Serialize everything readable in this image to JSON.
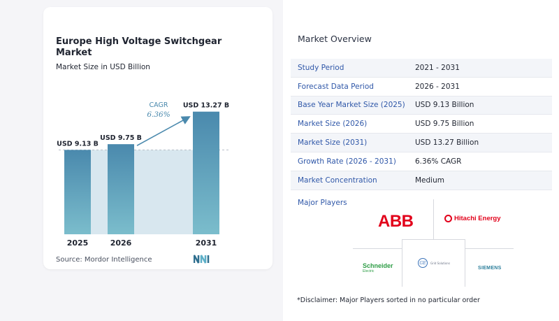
{
  "chart_data": {
    "type": "bar",
    "title": "Europe High Voltage Switchgear Market",
    "subtitle": "Market Size in USD Billion",
    "categories": [
      "2025",
      "2026",
      "2031"
    ],
    "values": [
      9.13,
      9.75,
      13.27
    ],
    "data_labels": [
      "USD 9.13 B",
      "USD 9.75 B",
      "USD 13.27 B"
    ],
    "cagr_label": "CAGR",
    "cagr_value": "6.36%",
    "ylim": [
      0,
      14
    ],
    "grid": false,
    "colors": {
      "bar_top": "#4a89ad",
      "bar_bottom": "#7bbdcc",
      "band": "#d8e7ef",
      "arrow": "#4a89ad",
      "cagr_text": "#4a89ad"
    }
  },
  "source": "Source:  Mordor Intelligence",
  "brand_icon": "mordor-intelligence-logo",
  "overview": {
    "title": "Market Overview",
    "rows": [
      {
        "key": "Study Period",
        "value": "2021 - 2031"
      },
      {
        "key": "Forecast Data Period",
        "value": "2026 - 2031"
      },
      {
        "key": "Base Year Market Size (2025)",
        "value": "USD 9.13 Billion"
      },
      {
        "key": "Market Size (2026)",
        "value": "USD 9.75 Billion"
      },
      {
        "key": "Market Size (2031)",
        "value": "USD 13.27 Billion"
      },
      {
        "key": "Growth Rate (2026 - 2031)",
        "value": "6.36% CAGR"
      },
      {
        "key": "Market Concentration",
        "value": "Medium"
      }
    ]
  },
  "players": {
    "title": "Major Players",
    "abb": "ABB",
    "hitachi": "Hitachi Energy",
    "schneider": "Schneider",
    "schneider_sub": "Electric",
    "ge_mark": "GE",
    "ge_text": "Grid Solutions",
    "siemens": "SIEMENS"
  },
  "disclaimer": "*Disclaimer: Major Players sorted in no particular order"
}
